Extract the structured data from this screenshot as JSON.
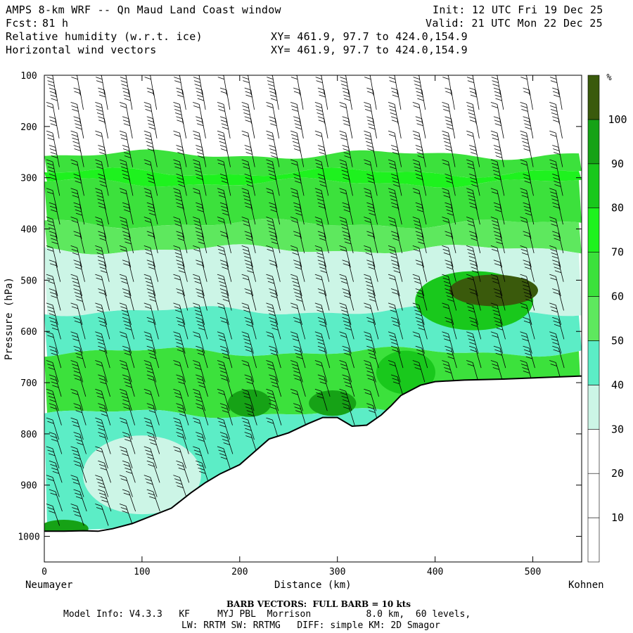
{
  "header": {
    "title": "AMPS 8-km WRF -- Qn Maud Land Coast window",
    "init": "Init: 12 UTC Fri 19 Dec 25",
    "fcst_label": "Fcst:",
    "fcst_value": "81 h",
    "valid": "Valid: 21 UTC Mon 22 Dec 25",
    "field1": "Relative humidity (w.r.t. ice)",
    "field1_xy": "XY= 461.9, 97.7 to 424.0,154.9",
    "field2": "Horizontal wind vectors",
    "field2_xy": "XY= 461.9, 97.7 to 424.0,154.9"
  },
  "chart_data": {
    "type": "heatmap",
    "title": "Relative humidity (w.r.t. ice) cross-section with horizontal wind barbs",
    "xlabel": "Distance (km)",
    "ylabel": "Pressure (hPa)",
    "xlim": [
      0,
      550
    ],
    "ylim": [
      1050,
      100
    ],
    "x_ticks": [
      0,
      100,
      200,
      300,
      400,
      500
    ],
    "y_ticks": [
      100,
      200,
      300,
      400,
      500,
      600,
      700,
      800,
      900,
      1000
    ],
    "x_tick_labels": [
      "0",
      "100",
      "200",
      "300",
      "400",
      "500"
    ],
    "y_tick_labels": [
      "100",
      "200",
      "300",
      "400",
      "500",
      "600",
      "700",
      "800",
      "900",
      "1000"
    ],
    "start_label": "Neumayer",
    "end_label": "Kohnen",
    "colorbar": {
      "unit": "%",
      "levels": [
        10,
        20,
        30,
        40,
        50,
        60,
        70,
        80,
        90,
        100
      ],
      "level_labels": [
        "10",
        "20",
        "30",
        "40",
        "50",
        "60",
        "70",
        "80",
        "90",
        "100"
      ],
      "colors": [
        "#ffffff",
        "#ffffff",
        "#ffffff",
        "#ccf5e6",
        "#5cedc6",
        "#5ee85e",
        "#3ce13c",
        "#1ef21e",
        "#19c81c",
        "#16a216",
        "#3a5a0c"
      ]
    },
    "terrain_surface_hPa": [
      {
        "km": 0,
        "p": 990
      },
      {
        "km": 20,
        "p": 990
      },
      {
        "km": 40,
        "p": 989
      },
      {
        "km": 55,
        "p": 990
      },
      {
        "km": 70,
        "p": 985
      },
      {
        "km": 90,
        "p": 975
      },
      {
        "km": 110,
        "p": 960
      },
      {
        "km": 130,
        "p": 945
      },
      {
        "km": 150,
        "p": 915
      },
      {
        "km": 165,
        "p": 895
      },
      {
        "km": 180,
        "p": 878
      },
      {
        "km": 200,
        "p": 860
      },
      {
        "km": 215,
        "p": 835
      },
      {
        "km": 230,
        "p": 810
      },
      {
        "km": 250,
        "p": 798
      },
      {
        "km": 270,
        "p": 780
      },
      {
        "km": 285,
        "p": 768
      },
      {
        "km": 300,
        "p": 768
      },
      {
        "km": 315,
        "p": 785
      },
      {
        "km": 330,
        "p": 783
      },
      {
        "km": 345,
        "p": 763
      },
      {
        "km": 355,
        "p": 745
      },
      {
        "km": 365,
        "p": 725
      },
      {
        "km": 385,
        "p": 705
      },
      {
        "km": 400,
        "p": 698
      },
      {
        "km": 430,
        "p": 695
      },
      {
        "km": 470,
        "p": 693
      },
      {
        "km": 510,
        "p": 690
      },
      {
        "km": 550,
        "p": 687
      }
    ],
    "rh_layers_approx": [
      {
        "p_top": 100,
        "p_bottom": 255,
        "rh_pct": 10
      },
      {
        "p_top": 255,
        "p_bottom": 290,
        "rh_pct": 65
      },
      {
        "p_top": 290,
        "p_bottom": 310,
        "rh_pct": 75
      },
      {
        "p_top": 310,
        "p_bottom": 390,
        "rh_pct": 65
      },
      {
        "p_top": 390,
        "p_bottom": 440,
        "rh_pct": 55
      },
      {
        "p_top": 440,
        "p_bottom": 560,
        "rh_pct": 35
      },
      {
        "p_top": 560,
        "p_bottom": 640,
        "rh_pct": 45
      },
      {
        "p_top": 640,
        "p_bottom": 760,
        "rh_pct": 65
      },
      {
        "p_top": 760,
        "p_bottom": 990,
        "rh_pct": 45
      }
    ],
    "barb_columns_km": [
      10,
      35,
      60,
      85,
      110,
      140,
      160,
      185,
      210,
      235,
      260,
      285,
      310,
      335,
      360,
      385,
      415,
      440,
      465,
      495,
      525
    ]
  },
  "footer": {
    "barb_note": "BARB VECTORS:  FULL BARB = 10 kts",
    "model_info": "Model Info: V4.3.3   KF     MYJ PBL  Morrison          8.0 km,  60 levels,",
    "physics_info": "LW: RRTM SW: RRTMG   DIFF: simple KM: 2D Smagor"
  }
}
